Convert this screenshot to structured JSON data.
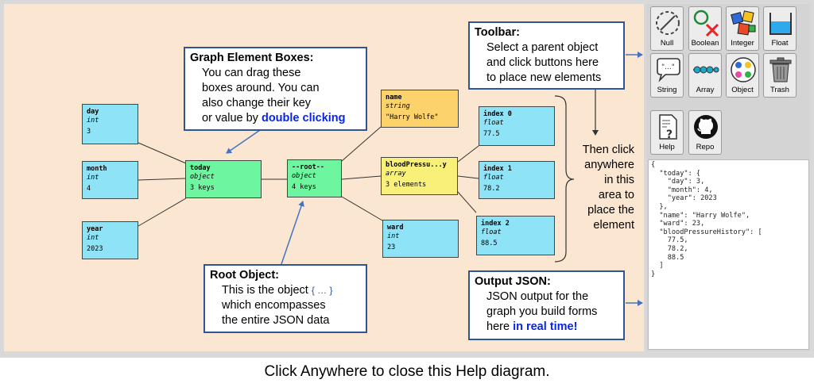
{
  "toolbar": {
    "buttons": [
      {
        "label": "Null",
        "icon": "null-icon"
      },
      {
        "label": "Boolean",
        "icon": "boolean-icon"
      },
      {
        "label": "Integer",
        "icon": "integer-icon"
      },
      {
        "label": "Float",
        "icon": "float-icon"
      },
      {
        "label": "String",
        "icon": "string-icon"
      },
      {
        "label": "Array",
        "icon": "array-icon"
      },
      {
        "label": "Object",
        "icon": "object-icon"
      },
      {
        "label": "Trash",
        "icon": "trash-icon"
      },
      {
        "label": "Help",
        "icon": "help-icon"
      },
      {
        "label": "Repo",
        "icon": "github-icon"
      }
    ]
  },
  "json_output": "{\n  \"today\": {\n    \"day\": 3,\n    \"month\": 4,\n    \"year\": 2023\n  },\n  \"name\": \"Harry Wolfe\",\n  \"ward\": 23,\n  \"bloodPressureHistory\": [\n    77.5,\n    78.2,\n    88.5\n  ]\n}",
  "nodes": {
    "day": {
      "key": "day",
      "type": "int",
      "value": "3"
    },
    "month": {
      "key": "month",
      "type": "int",
      "value": "4"
    },
    "year": {
      "key": "year",
      "type": "int",
      "value": "2023"
    },
    "today": {
      "key": "today",
      "type": "object",
      "value": "3 keys"
    },
    "root": {
      "key": "--root--",
      "type": "object",
      "value": "4 keys"
    },
    "name": {
      "key": "name",
      "type": "string",
      "value": "\"Harry Wolfe\""
    },
    "blood": {
      "key": "bloodPressu...y",
      "type": "array",
      "value": "3 elements"
    },
    "ward": {
      "key": "ward",
      "type": "int",
      "value": "23"
    },
    "index0": {
      "key": "index 0",
      "type": "float",
      "value": "77.5"
    },
    "index1": {
      "key": "index 1",
      "type": "float",
      "value": "78.2"
    },
    "index2": {
      "key": "index 2",
      "type": "float",
      "value": "88.5"
    }
  },
  "notes": {
    "graph": {
      "title": "Graph Element Boxes:",
      "line1": "You can drag these",
      "line2": "boxes around. You can",
      "line3": "also change their key",
      "line4a": "or value by ",
      "line4b": "double clicking"
    },
    "root": {
      "title": "Root Object:",
      "line1a": "This is the object ",
      "line1b": "{ … }",
      "line2": "which encompasses",
      "line3": "the entire JSON data"
    },
    "toolbar": {
      "title": "Toolbar:",
      "line1": "Select a parent object",
      "line2": "and click buttons here",
      "line3": "to place new elements"
    },
    "output": {
      "title": "Output JSON:",
      "line1": "JSON output for the",
      "line2": "graph you build forms",
      "line3a": "here ",
      "line3b": "in real time!"
    }
  },
  "right_text": {
    "l1": "Then click",
    "l2": "anywhere",
    "l3": "in this",
    "l4": "area to",
    "l5": "place the",
    "l6": "element"
  },
  "caption": "Click Anywhere to close this Help diagram.",
  "colors": {
    "canvas": "#fbe7d1",
    "note_border": "#2f5597",
    "highlight": "#0a24e6",
    "cyan_node": "#8ee3f7",
    "green_node": "#6ef5a0",
    "yellow_node": "#f9f07a",
    "orange_node": "#fbd36a"
  }
}
